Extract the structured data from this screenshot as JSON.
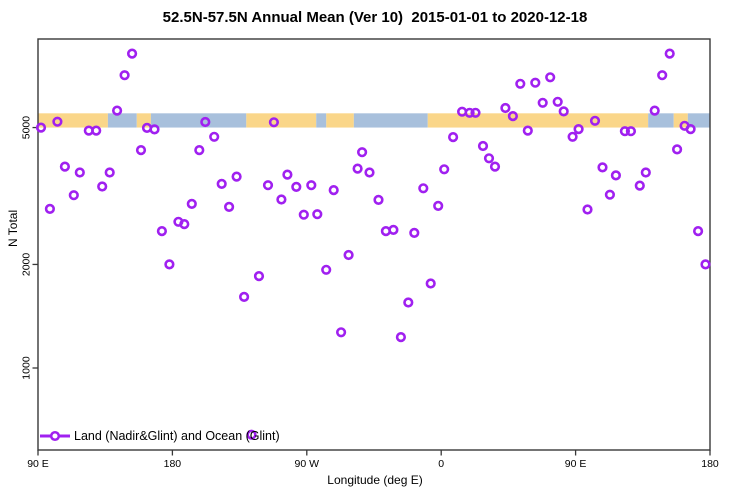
{
  "chart_data": {
    "type": "scatter",
    "title": "52.5N-57.5N Annual Mean (Ver 10)  2015-01-01 to 2020-12-18",
    "xlabel": "Longitude (deg E)",
    "ylabel": "N Total",
    "x_axis": {
      "range": [
        90,
        540
      ],
      "ticks": [
        90,
        180,
        270,
        360,
        450,
        540
      ],
      "tick_labels": [
        "90 E",
        "180",
        "90 W",
        "0",
        "90 E",
        "180"
      ]
    },
    "y_axis": {
      "scale": "log",
      "range": [
        600,
        9000
      ],
      "ticks": [
        1000,
        2000,
        5000
      ],
      "tick_labels": [
        "1000",
        "2000",
        "5000"
      ]
    },
    "legend": {
      "label": "Land (Nadir&Glint) and Ocean (Glint)"
    },
    "colors": {
      "point": "#A020F0",
      "land": "#FAD689",
      "ocean": "#A8C0DC",
      "axis": "#383838"
    },
    "map_strip": {
      "value_range": [
        5000,
        5500
      ],
      "segments": [
        {
          "from": 0.0,
          "to": 0.104,
          "type": "land"
        },
        {
          "from": 0.104,
          "to": 0.147,
          "type": "ocean"
        },
        {
          "from": 0.147,
          "to": 0.168,
          "type": "land"
        },
        {
          "from": 0.168,
          "to": 0.31,
          "type": "ocean"
        },
        {
          "from": 0.31,
          "to": 0.414,
          "type": "land"
        },
        {
          "from": 0.414,
          "to": 0.429,
          "type": "ocean"
        },
        {
          "from": 0.429,
          "to": 0.47,
          "type": "land"
        },
        {
          "from": 0.47,
          "to": 0.58,
          "type": "ocean"
        },
        {
          "from": 0.58,
          "to": 0.908,
          "type": "land"
        },
        {
          "from": 0.908,
          "to": 0.946,
          "type": "ocean"
        },
        {
          "from": 0.946,
          "to": 0.967,
          "type": "land"
        },
        {
          "from": 0.967,
          "to": 1.0,
          "type": "ocean"
        }
      ]
    },
    "points": [
      [
        153,
        8200
      ],
      [
        148,
        7100
      ],
      [
        143,
        5600
      ],
      [
        103,
        5200
      ],
      [
        92,
        5000
      ],
      [
        124,
        4900
      ],
      [
        129,
        4900
      ],
      [
        163,
        4990
      ],
      [
        168,
        4940
      ],
      [
        202,
        5190
      ],
      [
        159,
        4300
      ],
      [
        198,
        4300
      ],
      [
        208,
        4700
      ],
      [
        108,
        3850
      ],
      [
        118,
        3700
      ],
      [
        138,
        3700
      ],
      [
        133,
        3370
      ],
      [
        114,
        3180
      ],
      [
        98,
        2900
      ],
      [
        193,
        3000
      ],
      [
        184,
        2660
      ],
      [
        188,
        2620
      ],
      [
        173,
        2500
      ],
      [
        178,
        2000
      ],
      [
        248,
        5180
      ],
      [
        307,
        4240
      ],
      [
        304,
        3800
      ],
      [
        312,
        3700
      ],
      [
        223,
        3600
      ],
      [
        213,
        3430
      ],
      [
        257,
        3650
      ],
      [
        244,
        3400
      ],
      [
        263,
        3360
      ],
      [
        273,
        3400
      ],
      [
        288,
        3290
      ],
      [
        253,
        3090
      ],
      [
        218,
        2940
      ],
      [
        268,
        2790
      ],
      [
        277,
        2800
      ],
      [
        298,
        2130
      ],
      [
        283,
        1930
      ],
      [
        238,
        1850
      ],
      [
        228,
        1610
      ],
      [
        293,
        1270
      ],
      [
        233,
        640
      ],
      [
        413,
        6700
      ],
      [
        423,
        6750
      ],
      [
        428,
        5900
      ],
      [
        403,
        5700
      ],
      [
        408,
        5400
      ],
      [
        374,
        5560
      ],
      [
        379,
        5520
      ],
      [
        383,
        5520
      ],
      [
        418,
        4900
      ],
      [
        368,
        4690
      ],
      [
        388,
        4420
      ],
      [
        392,
        4070
      ],
      [
        396,
        3850
      ],
      [
        362,
        3780
      ],
      [
        348,
        3330
      ],
      [
        318,
        3080
      ],
      [
        358,
        2960
      ],
      [
        323,
        2500
      ],
      [
        328,
        2520
      ],
      [
        342,
        2470
      ],
      [
        353,
        1760
      ],
      [
        338,
        1550
      ],
      [
        333,
        1230
      ],
      [
        513,
        8200
      ],
      [
        508,
        7100
      ],
      [
        433,
        7000
      ],
      [
        438,
        5940
      ],
      [
        442,
        5570
      ],
      [
        503,
        5600
      ],
      [
        463,
        5230
      ],
      [
        452,
        4950
      ],
      [
        523,
        5060
      ],
      [
        527,
        4950
      ],
      [
        448,
        4700
      ],
      [
        483,
        4880
      ],
      [
        487,
        4880
      ],
      [
        518,
        4320
      ],
      [
        468,
        3830
      ],
      [
        477,
        3630
      ],
      [
        497,
        3700
      ],
      [
        493,
        3390
      ],
      [
        473,
        3190
      ],
      [
        458,
        2890
      ],
      [
        532,
        2500
      ],
      [
        537,
        2000
      ]
    ]
  }
}
